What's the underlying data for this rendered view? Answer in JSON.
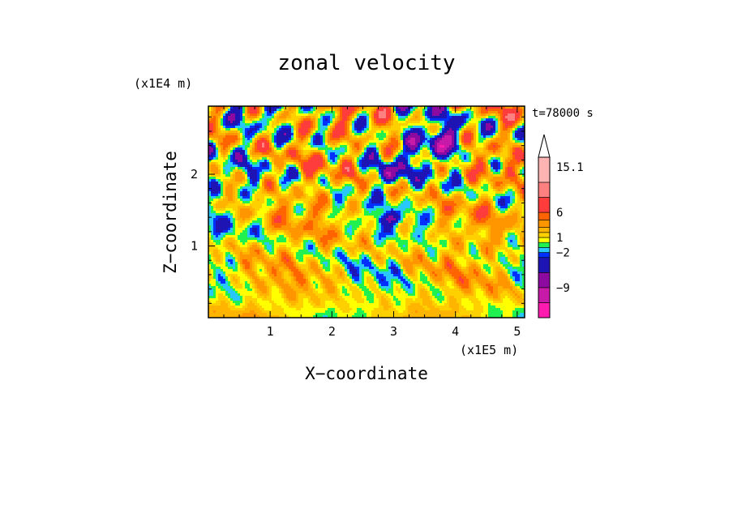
{
  "chart_data": {
    "type": "heatmap",
    "title": "zonal velocity",
    "xlabel": "X−coordinate",
    "ylabel": "Z−coordinate",
    "x_unit": "(x1E5 m)",
    "y_unit": "(x1E4 m)",
    "time_label": "t=78000 s",
    "x_ticks": [
      "1",
      "2",
      "3",
      "4",
      "5"
    ],
    "y_ticks": [
      "1",
      "2"
    ],
    "xlim": [
      0,
      5.12
    ],
    "ylim": [
      0,
      2.95
    ],
    "legend_position": "right",
    "colorbar": {
      "tick_labels": [
        "15.1",
        "6",
        "1",
        "−2",
        "−9"
      ],
      "tick_values": [
        15.1,
        6,
        1,
        -2,
        -9
      ],
      "range": [
        -15,
        17
      ],
      "extend_top": true,
      "colors": [
        "#ff1ab0",
        "#c81aa8",
        "#8c0aa0",
        "#1e14b4",
        "#0030ff",
        "#28c8ff",
        "#20f050",
        "#ffff00",
        "#ffd000",
        "#ffb400",
        "#ff9600",
        "#ff6400",
        "#ff3c3c",
        "#ff8080",
        "#ffb4b4"
      ],
      "boundaries": [
        -15,
        -12,
        -9,
        -6,
        -3,
        -2,
        -1,
        0,
        1,
        2,
        3,
        4.5,
        6,
        9,
        12,
        17
      ]
    }
  }
}
